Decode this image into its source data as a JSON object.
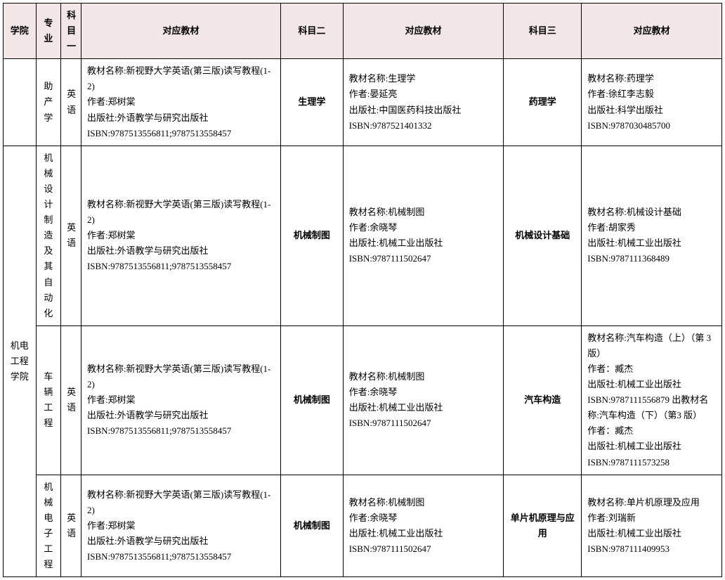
{
  "header": {
    "college": "学院",
    "major": "专业",
    "sub1": "科目一",
    "book1": "对应教材",
    "sub2": "科目二",
    "book2": "对应教材",
    "sub3": "科目三",
    "book3": "对应教材"
  },
  "college_name": "机电工程学院",
  "rows": [
    {
      "major": "助产学",
      "sub1": "英语",
      "book1": "教材名称:新视野大学英语(第三版)读写教程(1-2)\n作者:郑树棠\n出版社:外语教学与研究出版社\nISBN:9787513556811;9787513558457",
      "sub2": "生理学",
      "book2": "教材名称:生理学\n作者:晏延亮\n出版社:中国医药科技出版社\nISBN:9787521401332",
      "sub3": "药理学",
      "book3": "教材名称:药理学\n作者:徐红李志毅\n出版社:科学出版社\nISBN:9787030485700"
    },
    {
      "major": "机械设计制造及其自动化",
      "sub1": "英语",
      "book1": "教材名称:新视野大学英语(第三版)读写教程(1-2)\n作者:郑树棠\n出版社:外语教学与研究出版社\nISBN:9787513556811;9787513558457",
      "sub2": "机械制图",
      "book2": "教材名称:机械制图\n作者:余晓琴\n出版社:机械工业出版社\nISBN:9787111502647",
      "sub3": "机械设计基础",
      "book3": "教材名称:机械设计基础\n作者:胡家秀\n出版社:机械工业出版社\nISBN:9787111368489"
    },
    {
      "major": "车辆工程",
      "sub1": "英语",
      "book1": "教材名称:新视野大学英语(第三版)读写教程(1-2)\n作者:郑树棠\n出版社:外语教学与研究出版社\nISBN:9787513556811;9787513558457",
      "sub2": "机械制图",
      "book2": "教材名称:机械制图\n作者:余晓琴\n出版社:机械工业出版社\nISBN:9787111502647",
      "sub3": "汽车构造",
      "book3": "教材名称:汽车构造（上）（第 3 版）\n作者：臧杰\n出版社:机械工业出版社\nISBN:9787111556879 出教材名称:汽车构造（下）（第3 版）\n作者：臧杰\n出版社:机械工业出版社\nISBN:9787111573258"
    },
    {
      "major": "机械电子工程",
      "sub1": "英语",
      "book1": "教材名称:新视野大学英语(第三版)读写教程(1-2)\n作者:郑树棠\n出版社:外语教学与研究出版社\nISBN:9787513556811;9787513558457",
      "sub2": "机械制图",
      "book2": "教材名称:机械制图\n作者:余晓琴\n出版社:机械工业出版社\nISBN:9787111502647",
      "sub3": "单片机原理与应用",
      "book3": "教材名称:单片机原理及应用\n作者:刘瑞新\n出版社:机械工业出版社\nISBN:9787111409953"
    }
  ],
  "style": {
    "header_bg": "#f2e6e6",
    "border_color": "#000000",
    "font_family": "SimSun",
    "font_size_pt": 10,
    "line_height": 1.7
  }
}
